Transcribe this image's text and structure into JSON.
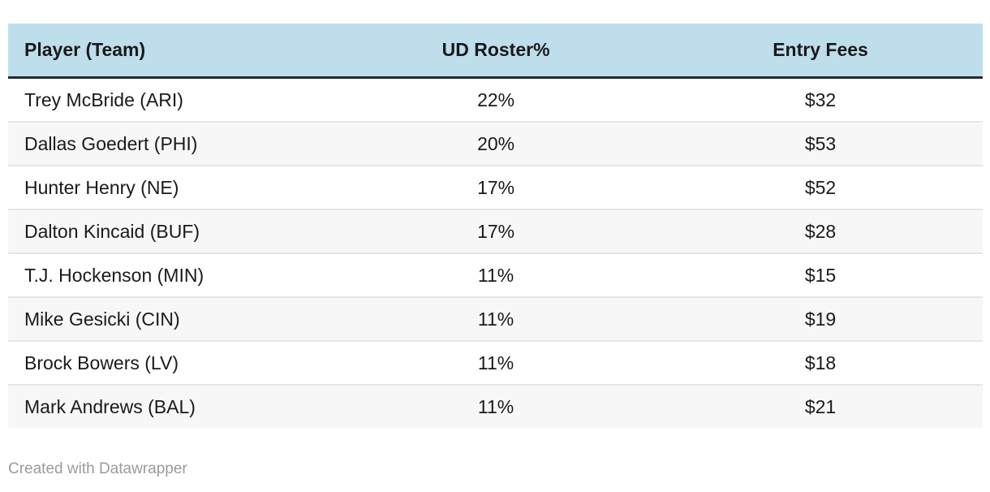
{
  "colors": {
    "background": "#ffffff",
    "header_bg": "#bedeec",
    "header_border": "#1f2a33",
    "row_stripe": "#f7f7f7",
    "row_border": "#e6e6e6",
    "text": "#1a1a1a",
    "footer_text": "#9b9b9b"
  },
  "table": {
    "columns": [
      {
        "label": "Player (Team)",
        "align": "left"
      },
      {
        "label": "UD Roster%",
        "align": "center"
      },
      {
        "label": "Entry Fees",
        "align": "center"
      }
    ],
    "rows": [
      [
        "Trey McBride (ARI)",
        "22%",
        "$32"
      ],
      [
        "Dallas Goedert (PHI)",
        "20%",
        "$53"
      ],
      [
        "Hunter Henry (NE)",
        "17%",
        "$52"
      ],
      [
        "Dalton Kincaid (BUF)",
        "17%",
        "$28"
      ],
      [
        "T.J. Hockenson (MIN)",
        "11%",
        "$15"
      ],
      [
        "Mike Gesicki (CIN)",
        "11%",
        "$19"
      ],
      [
        "Brock Bowers (LV)",
        "11%",
        "$18"
      ],
      [
        "Mark Andrews (BAL)",
        "11%",
        "$21"
      ]
    ]
  },
  "footer": {
    "credit": "Created with Datawrapper"
  },
  "chart_data": {
    "type": "table",
    "title": "",
    "columns": [
      "Player (Team)",
      "UD Roster%",
      "Entry Fees"
    ],
    "rows": [
      {
        "player": "Trey McBride (ARI)",
        "ud_roster_pct": 22,
        "entry_fees_usd": 32
      },
      {
        "player": "Dallas Goedert (PHI)",
        "ud_roster_pct": 20,
        "entry_fees_usd": 53
      },
      {
        "player": "Hunter Henry (NE)",
        "ud_roster_pct": 17,
        "entry_fees_usd": 52
      },
      {
        "player": "Dalton Kincaid (BUF)",
        "ud_roster_pct": 17,
        "entry_fees_usd": 28
      },
      {
        "player": "T.J. Hockenson (MIN)",
        "ud_roster_pct": 11,
        "entry_fees_usd": 15
      },
      {
        "player": "Mike Gesicki (CIN)",
        "ud_roster_pct": 11,
        "entry_fees_usd": 19
      },
      {
        "player": "Brock Bowers (LV)",
        "ud_roster_pct": 11,
        "entry_fees_usd": 18
      },
      {
        "player": "Mark Andrews (BAL)",
        "ud_roster_pct": 11,
        "entry_fees_usd": 21
      }
    ],
    "layout_hints": {
      "header_background": "#bedeec",
      "zebra_striping": true,
      "value_alignment": "center",
      "player_alignment": "left"
    }
  }
}
